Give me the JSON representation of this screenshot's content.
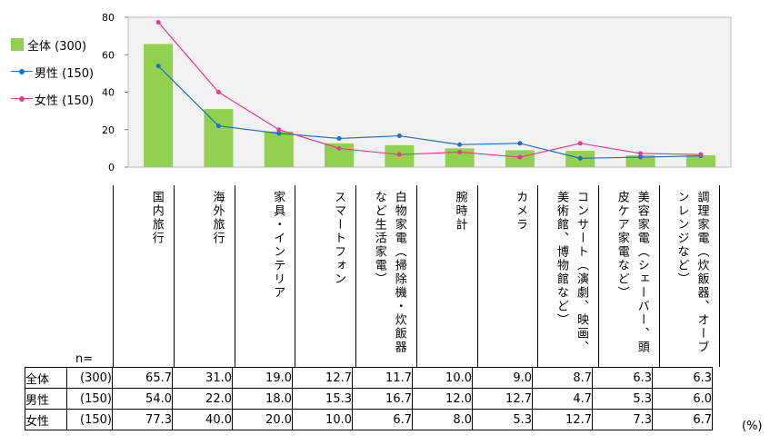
{
  "chart_data": {
    "type": "bar",
    "categories": [
      "国内旅行",
      "海外旅行",
      "家具・インテリア",
      "スマートフォン",
      "白物家電（掃除機・炊飯器など生活家電）",
      "腕時計",
      "カメラ",
      "コンサート（演劇、映画、美術館、博物館など）",
      "美容家電（シェーバー、頭皮ケア家電など）",
      "調理家電（炊飯器、オーブンレンジなど）"
    ],
    "series": [
      {
        "name": "全体 (300)",
        "n": "(300)",
        "label": "全体",
        "type": "bar",
        "color": "#92d050",
        "values": [
          65.7,
          31.0,
          19.0,
          12.7,
          11.7,
          10.0,
          9.0,
          8.7,
          6.3,
          6.3
        ]
      },
      {
        "name": "男性 (150)",
        "n": "(150)",
        "label": "男性",
        "type": "line",
        "color": "#1f6dc4",
        "values": [
          54.0,
          22.0,
          18.0,
          15.3,
          16.7,
          12.0,
          12.7,
          4.7,
          5.3,
          6.0
        ]
      },
      {
        "name": "女性 (150)",
        "n": "(150)",
        "label": "女性",
        "type": "line",
        "color": "#e83c8c",
        "values": [
          77.3,
          40.0,
          20.0,
          10.0,
          6.7,
          8.0,
          5.3,
          12.7,
          7.3,
          6.7
        ]
      }
    ],
    "ylim": [
      0,
      80
    ],
    "yticks": [
      "0",
      "20",
      "40",
      "60",
      "80"
    ],
    "grid": false,
    "legend": "left",
    "plot_background": "#f2f2f2",
    "n_label": "n=",
    "unit": "(%)"
  }
}
